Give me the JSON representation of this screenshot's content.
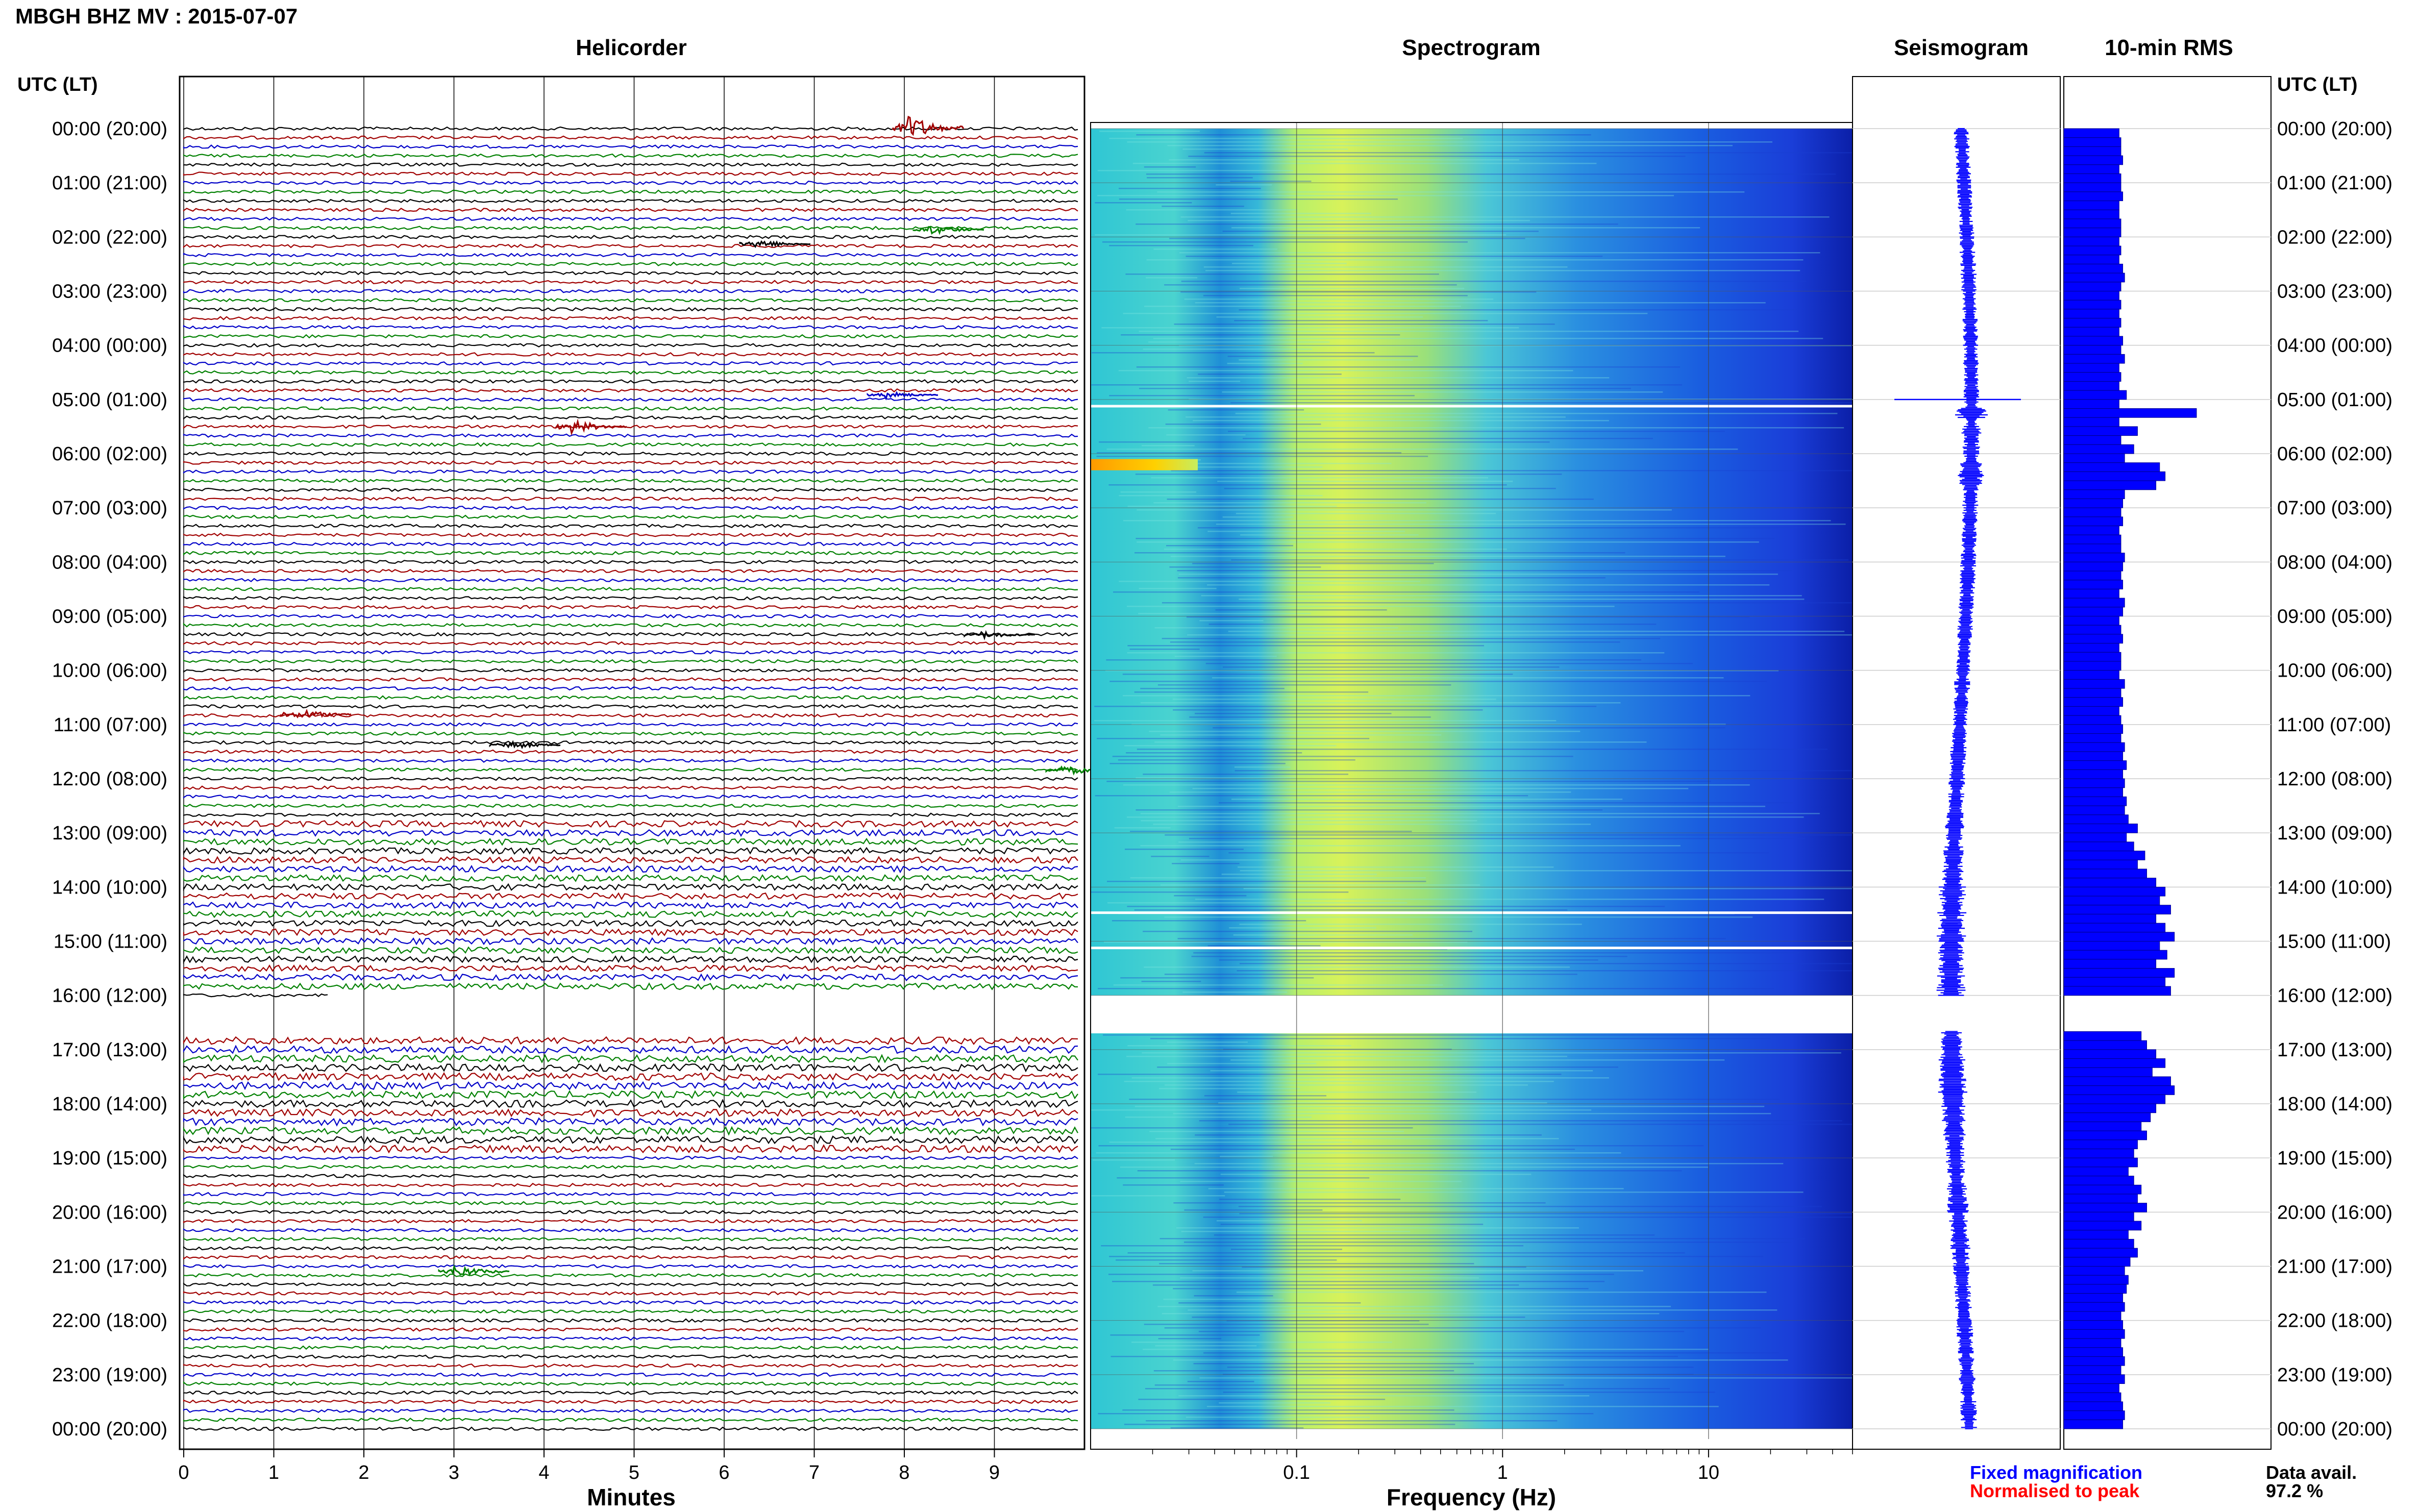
{
  "header": {
    "title": "MBGH BHZ MV : 2015-07-07"
  },
  "panels": {
    "helicorder_title": "Helicorder",
    "spectrogram_title": "Spectrogram",
    "seismogram_title": "Seismogram",
    "rms_title": "10-min RMS"
  },
  "time_axis": {
    "label_left": "UTC (LT)",
    "label_right": "UTC (LT)",
    "hour_labels": [
      "00:00 (20:00)",
      "01:00 (21:00)",
      "02:00 (22:00)",
      "03:00 (23:00)",
      "04:00 (00:00)",
      "05:00 (01:00)",
      "06:00 (02:00)",
      "07:00 (03:00)",
      "08:00 (04:00)",
      "09:00 (05:00)",
      "10:00 (06:00)",
      "11:00 (07:00)",
      "12:00 (08:00)",
      "13:00 (09:00)",
      "14:00 (10:00)",
      "15:00 (11:00)",
      "16:00 (12:00)",
      "17:00 (13:00)",
      "18:00 (14:00)",
      "19:00 (15:00)",
      "20:00 (16:00)",
      "21:00 (17:00)",
      "22:00 (18:00)",
      "23:00 (19:00)",
      "00:00 (20:00)"
    ]
  },
  "helicorder": {
    "xlabel": "Minutes",
    "xticks": [
      "0",
      "1",
      "2",
      "3",
      "4",
      "5",
      "6",
      "7",
      "8",
      "9"
    ],
    "trace_colors": [
      "#000000",
      "#a00000",
      "#0000c8",
      "#008000"
    ]
  },
  "spectrogram": {
    "xlabel": "Frequency (Hz)",
    "xticks": [
      "0.1",
      "1",
      "10"
    ]
  },
  "legend": {
    "fixed": "Fixed magnification",
    "normalised": "Normalised to peak",
    "fixed_color": "#0000ff",
    "normalised_color": "#ff0000"
  },
  "availability": {
    "label": "Data avail.",
    "value": "97.2 %"
  },
  "chart_data": {
    "type": "bar",
    "title": "10-min RMS",
    "x_unit": "UTC hour",
    "data_gaps_utc": [
      [
        "16:00",
        "16:40"
      ]
    ],
    "series": [
      {
        "values": [
          0.3,
          0.31,
          0.31,
          0.32,
          0.3,
          0.31,
          0.31,
          0.32,
          0.3,
          0.3,
          0.31,
          0.31,
          0.3,
          0.31,
          0.3,
          0.32,
          0.33,
          0.31,
          0.3,
          0.31,
          0.3,
          0.31,
          0.3,
          0.32,
          0.31,
          0.33,
          0.3,
          0.31,
          0.3,
          0.34,
          0.3,
          0.72,
          0.3,
          0.4,
          0.31,
          0.38,
          0.33,
          0.52,
          0.55,
          0.5,
          0.33,
          0.32,
          0.31,
          0.32,
          0.3,
          0.31,
          0.31,
          0.33,
          0.32,
          0.31,
          0.32,
          0.3,
          0.33,
          0.32,
          0.3,
          0.31,
          0.32,
          0.3,
          0.31,
          0.31,
          0.3,
          0.33,
          0.31,
          0.32,
          0.3,
          0.31,
          0.32,
          0.31,
          0.33,
          0.32,
          0.34,
          0.32,
          0.33,
          0.32,
          0.34,
          0.33,
          0.35,
          0.4,
          0.34,
          0.38,
          0.44,
          0.4,
          0.45,
          0.5,
          0.55,
          0.52,
          0.58,
          0.5,
          0.55,
          0.6,
          0.52,
          0.56,
          0.5,
          0.6,
          0.55,
          0.58,
          0.0,
          0.0,
          0.0,
          0.0,
          0.42,
          0.45,
          0.5,
          0.55,
          0.48,
          0.58,
          0.6,
          0.55,
          0.5,
          0.47,
          0.42,
          0.45,
          0.4,
          0.38,
          0.4,
          0.35,
          0.38,
          0.42,
          0.4,
          0.45,
          0.38,
          0.42,
          0.35,
          0.38,
          0.4,
          0.36,
          0.33,
          0.35,
          0.34,
          0.32,
          0.33,
          0.31,
          0.32,
          0.33,
          0.31,
          0.32,
          0.33,
          0.31,
          0.33,
          0.3,
          0.31,
          0.32,
          0.33,
          0.32
        ]
      }
    ]
  }
}
